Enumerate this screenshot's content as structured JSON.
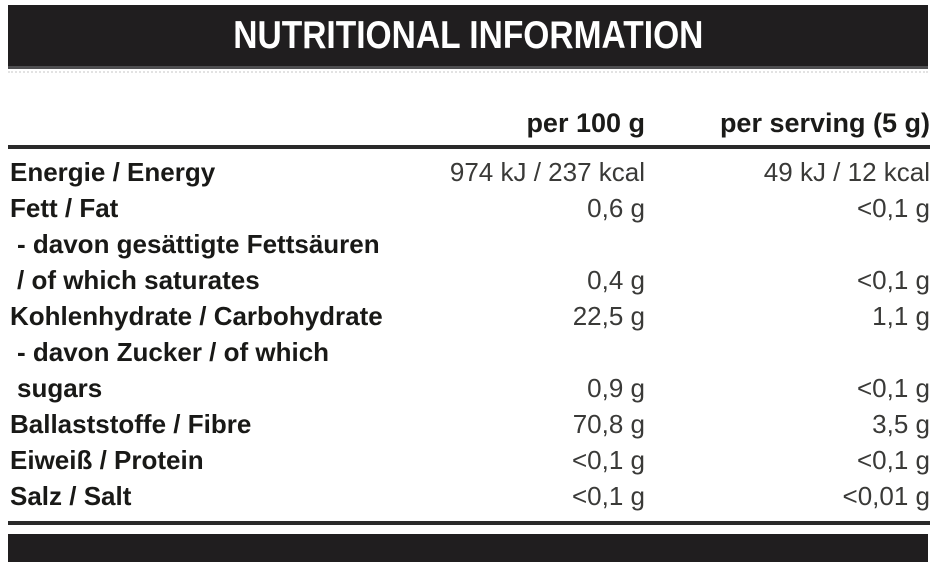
{
  "header": {
    "title": "NUTRITIONAL INFORMATION"
  },
  "table": {
    "columns": {
      "per100": "per 100 g",
      "serving": "per serving (5 g)"
    },
    "rows": [
      {
        "label": "Energie / Energy",
        "per100": "974 kJ / 237 kcal",
        "serving": "49 kJ / 12 kcal"
      },
      {
        "label": "Fett / Fat",
        "per100": "0,6 g",
        "serving": "<0,1 g"
      },
      {
        "label": "- davon gesättigte Fettsäuren\n/ of which saturates",
        "per100": "0,4 g",
        "serving": "<0,1 g"
      },
      {
        "label": "Kohlenhydrate / Carbohydrate",
        "per100": "22,5 g",
        "serving": "1,1 g"
      },
      {
        "label": "- davon Zucker / of which\nsugars",
        "per100": "0,9 g",
        "serving": "<0,1 g"
      },
      {
        "label": "Ballaststoffe / Fibre",
        "per100": "70,8 g",
        "serving": "3,5 g"
      },
      {
        "label": "Eiweiß / Protein",
        "per100": "<0,1 g",
        "serving": "<0,1 g"
      },
      {
        "label": "Salz / Salt",
        "per100": "<0,1 g",
        "serving": "<0,01 g"
      }
    ]
  },
  "colors": {
    "bar_background": "#201e1f",
    "title_text": "#ffffff",
    "label_text": "#191917",
    "value_text": "#3a3a38",
    "rule": "#2a2a2a"
  }
}
